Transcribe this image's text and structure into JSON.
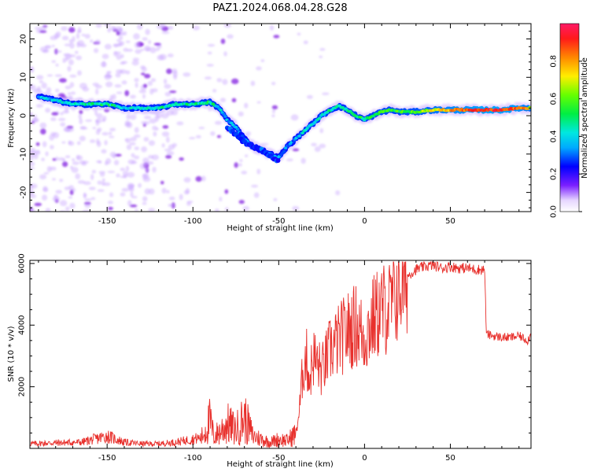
{
  "title": "PAZ1.2024.068.04.28.G28",
  "chart_data": [
    {
      "type": "heatmap",
      "xlabel": "Height of straight line (km)",
      "ylabel": "Frequency (Hz)",
      "xlim": [
        -195,
        97
      ],
      "ylim": [
        -25,
        24
      ],
      "xticks": [
        -150,
        -100,
        -50,
        0,
        50
      ],
      "yticks": [
        -20,
        -10,
        0,
        10,
        20
      ],
      "colorbar": {
        "label": "Normalized spectral amplitude",
        "range": [
          0,
          1
        ],
        "ticks": [
          0.0,
          0.2,
          0.4,
          0.6,
          0.8
        ],
        "colormap": "gist_ncar-like"
      },
      "ridge": {
        "x": [
          -190,
          -180,
          -170,
          -160,
          -150,
          -140,
          -130,
          -120,
          -110,
          -100,
          -90,
          -85,
          -80,
          -75,
          -70,
          -65,
          -60,
          -55,
          -50,
          -45,
          -40,
          -35,
          -30,
          -25,
          -20,
          -15,
          -10,
          -5,
          0,
          5,
          10,
          15,
          20,
          30,
          40,
          50,
          60,
          70,
          80,
          90,
          97
        ],
        "y": [
          5,
          4,
          3,
          3,
          3,
          2,
          2,
          2,
          3,
          3,
          3.5,
          2,
          -1,
          -3,
          -6,
          -8,
          -9,
          -10,
          -11,
          -8,
          -6,
          -4,
          -2,
          0,
          1.5,
          2.5,
          1.5,
          0,
          -1,
          0,
          1,
          1.5,
          1,
          1,
          1.5,
          1.5,
          1.5,
          1.5,
          1.5,
          2,
          2
        ],
        "amplitude": [
          0.35,
          0.4,
          0.4,
          0.45,
          0.5,
          0.4,
          0.4,
          0.45,
          0.45,
          0.45,
          0.5,
          0.4,
          0.35,
          0.35,
          0.3,
          0.3,
          0.3,
          0.3,
          0.35,
          0.35,
          0.35,
          0.4,
          0.4,
          0.45,
          0.45,
          0.45,
          0.45,
          0.5,
          0.5,
          0.5,
          0.55,
          0.55,
          0.55,
          0.6,
          0.7,
          0.8,
          0.85,
          0.9,
          0.9,
          0.85,
          0.7
        ]
      },
      "lower_branch": {
        "x": [
          -80,
          -75,
          -70,
          -65,
          -60,
          -55,
          -50
        ],
        "y": [
          -3,
          -5,
          -7,
          -8,
          -9,
          -10.5,
          -12
        ]
      }
    },
    {
      "type": "line",
      "xlabel": "Height of straight line (km)",
      "ylabel": "SNR (10 * v/v)",
      "xlim": [
        -195,
        97
      ],
      "ylim": [
        0,
        6100
      ],
      "xticks": [
        -150,
        -100,
        -50,
        0,
        50
      ],
      "yticks": [
        2000,
        4000,
        6000
      ],
      "color": "#e8302c",
      "series": [
        {
          "x": [
            -195,
            -180,
            -165,
            -150,
            -140,
            -130,
            -120,
            -110,
            -100,
            -95,
            -90,
            -88,
            -85,
            -80,
            -75,
            -70,
            -65,
            -60,
            -55,
            -50,
            -45,
            -42,
            -40,
            -38,
            -36,
            -34,
            -32,
            -30,
            -25,
            -20,
            -15,
            -10,
            -5,
            0,
            5,
            10,
            15,
            20,
            25,
            30,
            35,
            40,
            45,
            50,
            55,
            60,
            65,
            70,
            71,
            75,
            80,
            85,
            90,
            95,
            97
          ],
          "y": [
            150,
            180,
            200,
            400,
            200,
            150,
            150,
            200,
            300,
            350,
            900,
            400,
            500,
            800,
            600,
            1000,
            400,
            300,
            200,
            300,
            250,
            400,
            500,
            1200,
            2500,
            3000,
            2200,
            3000,
            2500,
            3200,
            3500,
            3800,
            4000,
            3600,
            4200,
            4500,
            4600,
            5200,
            5600,
            5800,
            5900,
            5950,
            5850,
            5900,
            5850,
            5850,
            5800,
            5800,
            3700,
            3650,
            3600,
            3600,
            3650,
            3500,
            3700
          ]
        }
      ]
    }
  ]
}
